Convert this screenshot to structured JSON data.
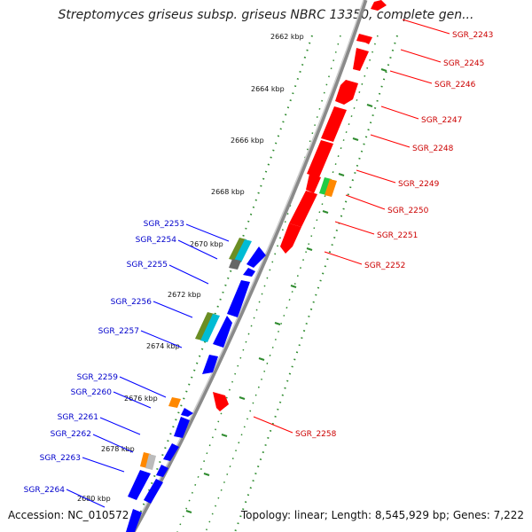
{
  "title": "Streptomyces griseus subsp. griseus NBRC 13350, complete gen...",
  "footer": {
    "accession": "Accession: NC_010572",
    "summary": "Topology: linear; Length: 8,545,929 bp; Genes: 7,222"
  },
  "ticks": [
    "2662 kbp",
    "2664 kbp",
    "2666 kbp",
    "2668 kbp",
    "2670 kbp",
    "2672 kbp",
    "2674 kbp",
    "2676 kbp",
    "2678 kbp",
    "2680 kbp"
  ],
  "genes_forward": [
    "SGR_2243",
    "SGR_2245",
    "SGR_2246",
    "SGR_2247",
    "SGR_2248",
    "SGR_2249",
    "SGR_2250",
    "SGR_2251",
    "SGR_2252",
    "SGR_2258"
  ],
  "genes_reverse": [
    "SGR_2253",
    "SGR_2254",
    "SGR_2255",
    "SGR_2256",
    "SGR_2257",
    "SGR_2259",
    "SGR_2260",
    "SGR_2261",
    "SGR_2262",
    "SGR_2263",
    "SGR_2264"
  ],
  "colors": {
    "forward_gene": "#ff0000",
    "reverse_gene": "#0000ff",
    "forward_label": "#cc0000",
    "reverse_label": "#0000cc",
    "tick_dots": "#2e8b2e",
    "backbone": "#888888"
  }
}
